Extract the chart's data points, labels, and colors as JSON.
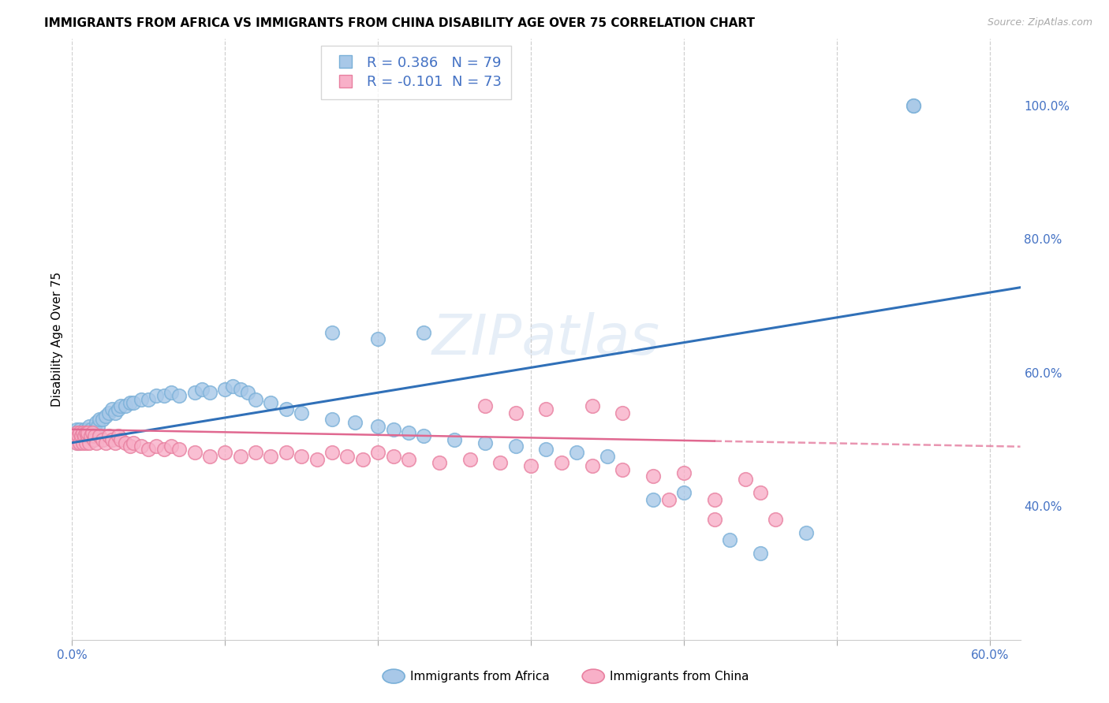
{
  "title": "IMMIGRANTS FROM AFRICA VS IMMIGRANTS FROM CHINA DISABILITY AGE OVER 75 CORRELATION CHART",
  "source": "Source: ZipAtlas.com",
  "ylabel": "Disability Age Over 75",
  "legend_africa": "Immigrants from Africa",
  "legend_china": "Immigrants from China",
  "R_africa": 0.386,
  "N_africa": 79,
  "R_china": -0.101,
  "N_china": 73,
  "color_africa": "#a8c8e8",
  "color_africa_edge": "#7ab0d8",
  "color_china": "#f8b0c8",
  "color_china_edge": "#e880a0",
  "trendline_africa_color": "#3070b8",
  "trendline_china_color": "#e06890",
  "xlim": [
    0.0,
    0.62
  ],
  "ylim": [
    0.2,
    1.1
  ],
  "yticks_right": [
    0.4,
    0.6,
    0.8,
    1.0
  ],
  "right_axis_color": "#4472c4",
  "watermark": "ZIPatlas",
  "background": "#ffffff",
  "grid_color": "#d0d0d0",
  "africa_x": [
    0.001,
    0.002,
    0.003,
    0.003,
    0.004,
    0.004,
    0.005,
    0.005,
    0.005,
    0.006,
    0.006,
    0.007,
    0.007,
    0.007,
    0.008,
    0.008,
    0.009,
    0.009,
    0.01,
    0.01,
    0.01,
    0.011,
    0.011,
    0.012,
    0.013,
    0.014,
    0.015,
    0.016,
    0.017,
    0.018,
    0.02,
    0.022,
    0.024,
    0.026,
    0.028,
    0.03,
    0.032,
    0.035,
    0.038,
    0.04,
    0.045,
    0.05,
    0.055,
    0.06,
    0.065,
    0.07,
    0.08,
    0.085,
    0.09,
    0.1,
    0.105,
    0.11,
    0.115,
    0.12,
    0.13,
    0.14,
    0.15,
    0.17,
    0.185,
    0.2,
    0.21,
    0.22,
    0.23,
    0.25,
    0.27,
    0.29,
    0.31,
    0.33,
    0.35,
    0.38,
    0.4,
    0.43,
    0.45,
    0.48,
    0.55,
    0.17,
    0.2,
    0.23,
    0.55
  ],
  "africa_y": [
    0.5,
    0.51,
    0.505,
    0.515,
    0.495,
    0.505,
    0.51,
    0.515,
    0.5,
    0.505,
    0.51,
    0.5,
    0.51,
    0.505,
    0.515,
    0.5,
    0.51,
    0.505,
    0.515,
    0.5,
    0.51,
    0.52,
    0.505,
    0.515,
    0.51,
    0.505,
    0.515,
    0.525,
    0.52,
    0.53,
    0.53,
    0.535,
    0.54,
    0.545,
    0.54,
    0.545,
    0.55,
    0.55,
    0.555,
    0.555,
    0.56,
    0.56,
    0.565,
    0.565,
    0.57,
    0.565,
    0.57,
    0.575,
    0.57,
    0.575,
    0.58,
    0.575,
    0.57,
    0.56,
    0.555,
    0.545,
    0.54,
    0.53,
    0.525,
    0.52,
    0.515,
    0.51,
    0.505,
    0.5,
    0.495,
    0.49,
    0.485,
    0.48,
    0.475,
    0.41,
    0.42,
    0.35,
    0.33,
    0.36,
    1.0,
    0.66,
    0.65,
    0.66,
    1.0
  ],
  "china_x": [
    0.001,
    0.002,
    0.003,
    0.003,
    0.004,
    0.005,
    0.005,
    0.006,
    0.007,
    0.007,
    0.008,
    0.009,
    0.009,
    0.01,
    0.01,
    0.011,
    0.012,
    0.013,
    0.014,
    0.015,
    0.016,
    0.018,
    0.02,
    0.022,
    0.024,
    0.026,
    0.028,
    0.03,
    0.032,
    0.035,
    0.038,
    0.04,
    0.045,
    0.05,
    0.055,
    0.06,
    0.065,
    0.07,
    0.08,
    0.09,
    0.1,
    0.11,
    0.12,
    0.13,
    0.14,
    0.15,
    0.16,
    0.17,
    0.18,
    0.19,
    0.2,
    0.21,
    0.22,
    0.24,
    0.26,
    0.28,
    0.3,
    0.32,
    0.34,
    0.36,
    0.38,
    0.4,
    0.42,
    0.44,
    0.27,
    0.29,
    0.31,
    0.34,
    0.36,
    0.39,
    0.42,
    0.45,
    0.46
  ],
  "china_y": [
    0.5,
    0.505,
    0.51,
    0.495,
    0.505,
    0.51,
    0.495,
    0.505,
    0.51,
    0.495,
    0.505,
    0.51,
    0.495,
    0.505,
    0.51,
    0.495,
    0.505,
    0.51,
    0.5,
    0.505,
    0.495,
    0.505,
    0.5,
    0.495,
    0.505,
    0.5,
    0.495,
    0.505,
    0.5,
    0.495,
    0.49,
    0.495,
    0.49,
    0.485,
    0.49,
    0.485,
    0.49,
    0.485,
    0.48,
    0.475,
    0.48,
    0.475,
    0.48,
    0.475,
    0.48,
    0.475,
    0.47,
    0.48,
    0.475,
    0.47,
    0.48,
    0.475,
    0.47,
    0.465,
    0.47,
    0.465,
    0.46,
    0.465,
    0.46,
    0.455,
    0.445,
    0.45,
    0.38,
    0.44,
    0.55,
    0.54,
    0.545,
    0.55,
    0.54,
    0.41,
    0.41,
    0.42,
    0.38
  ]
}
